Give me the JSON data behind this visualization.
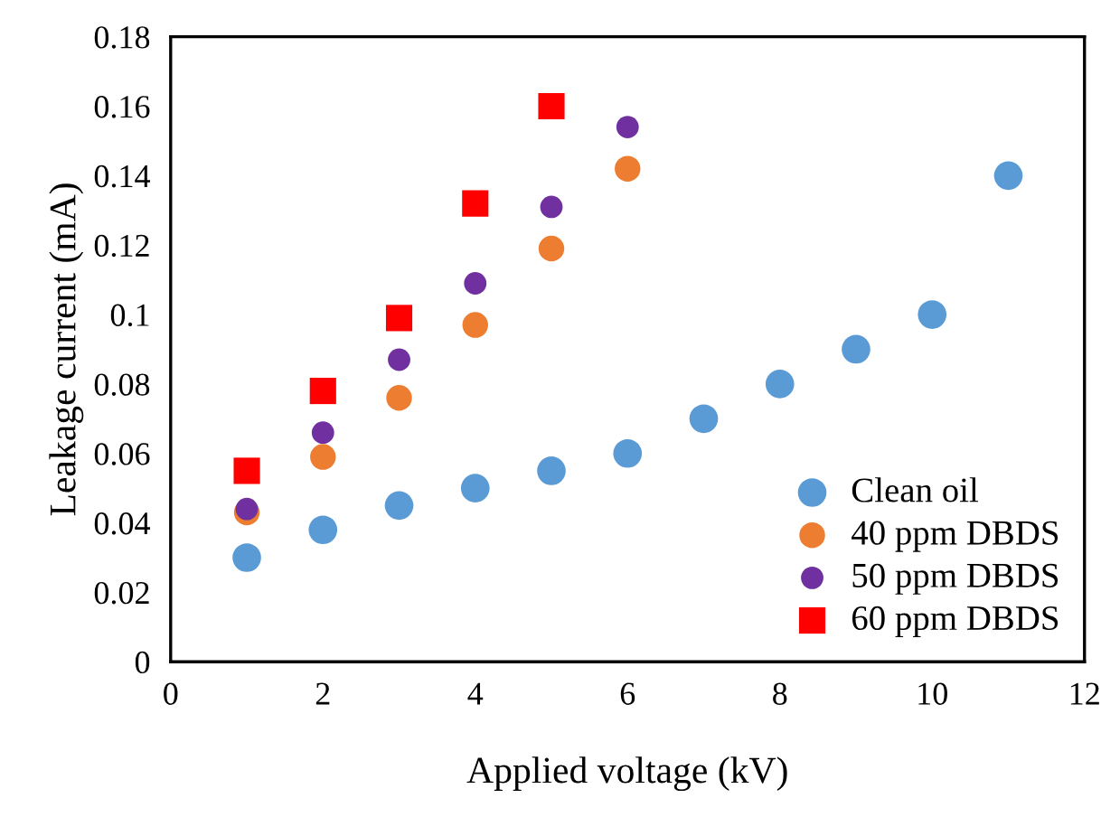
{
  "chart_data": {
    "type": "scatter",
    "xlabel": "Applied voltage (kV)",
    "ylabel": "Leakage current (mA)",
    "xlim": [
      0,
      12
    ],
    "xticks": [
      0,
      2,
      4,
      6,
      8,
      10,
      12
    ],
    "ylim": [
      0,
      0.18
    ],
    "yticks": [
      0,
      0.02,
      0.04,
      0.06,
      0.08,
      0.1,
      0.12,
      0.14,
      0.16,
      0.18
    ],
    "grid": false,
    "legend": "bottom right",
    "marker": "circle",
    "series": [
      {
        "name": "Clean oil",
        "color": "#5b9bd5",
        "x": [
          1,
          2,
          3,
          4,
          5,
          6,
          7,
          8,
          9,
          10,
          11
        ],
        "values": [
          0.03,
          0.038,
          0.045,
          0.05,
          0.055,
          0.06,
          0.07,
          0.08,
          0.09,
          0.1,
          0.14
        ]
      },
      {
        "name": "40 ppm DBDS",
        "color": "#ed7d31",
        "x": [
          1,
          2,
          3,
          4,
          5,
          6
        ],
        "values": [
          0.043,
          0.059,
          0.076,
          0.097,
          0.119,
          0.142
        ]
      },
      {
        "name": "50 ppm DBDS",
        "color": "#7030a0",
        "x": [
          1,
          2,
          3,
          4,
          5,
          6
        ],
        "values": [
          0.044,
          0.066,
          0.087,
          0.109,
          0.131,
          0.154
        ]
      },
      {
        "name": "60 ppm DBDS",
        "color": "#ff0000",
        "marker": "square",
        "x": [
          1,
          2,
          3,
          4,
          5
        ],
        "values": [
          0.055,
          0.078,
          0.099,
          0.132,
          0.16
        ]
      }
    ]
  }
}
